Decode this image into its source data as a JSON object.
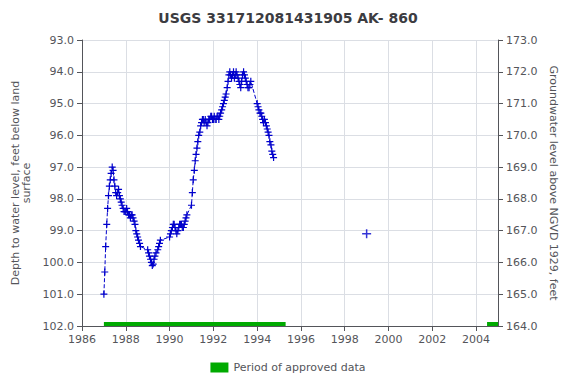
{
  "chart_data": {
    "type": "line",
    "title": "USGS 331712081431905 AK- 860",
    "ylabel": "Depth to water level, feet below land\nsurface",
    "y2label": "Groundwater level above NGVD 1929, feet",
    "xlim": [
      1986,
      2005
    ],
    "xticks": [
      1986,
      1988,
      1990,
      1992,
      1994,
      1996,
      1998,
      2000,
      2002,
      2004
    ],
    "ylim": [
      102.0,
      93.0
    ],
    "yticks": [
      {
        "value": 93.0,
        "label": "93.0"
      },
      {
        "value": 94.0,
        "label": "94.0"
      },
      {
        "value": 95.0,
        "label": "95.0"
      },
      {
        "value": 96.0,
        "label": "96.0"
      },
      {
        "value": 97.0,
        "label": "97.0"
      },
      {
        "value": 98.0,
        "label": "98.0"
      },
      {
        "value": 99.0,
        "label": "99.0"
      },
      {
        "value": 100.0,
        "label": "100.0"
      },
      {
        "value": 101.0,
        "label": "101.0"
      },
      {
        "value": 102.0,
        "label": "102.0"
      }
    ],
    "y2lim": [
      164.0,
      173.0
    ],
    "y2ticks": [
      {
        "value": 164.0,
        "label": "164.0"
      },
      {
        "value": 165.0,
        "label": "165.0"
      },
      {
        "value": 166.0,
        "label": "166.0"
      },
      {
        "value": 167.0,
        "label": "167.0"
      },
      {
        "value": 168.0,
        "label": "168.0"
      },
      {
        "value": 169.0,
        "label": "169.0"
      },
      {
        "value": 170.0,
        "label": "170.0"
      },
      {
        "value": 171.0,
        "label": "171.0"
      },
      {
        "value": 172.0,
        "label": "172.0"
      },
      {
        "value": 173.0,
        "label": "173.0"
      }
    ],
    "grid": true,
    "legend": "bottom",
    "series": [
      {
        "type": "line",
        "color": "#0000cc",
        "line_style": "dashed",
        "marker": "plus",
        "x": [
          1987.0,
          1987.04,
          1987.08,
          1987.13,
          1987.17,
          1987.21,
          1987.25,
          1987.29,
          1987.33,
          1987.38,
          1987.42,
          1987.46,
          1987.5,
          1987.54,
          1987.58,
          1987.63,
          1987.67,
          1987.71,
          1987.75,
          1987.79,
          1987.83,
          1987.88,
          1987.92,
          1987.96,
          1988.0,
          1988.04,
          1988.08,
          1988.13,
          1988.17,
          1988.21,
          1988.25,
          1988.29,
          1988.33,
          1988.38,
          1988.42,
          1988.46,
          1988.5,
          1988.54,
          1988.58,
          1988.63,
          1988.67,
          1989.0,
          1989.04,
          1989.08,
          1989.13,
          1989.17,
          1989.21,
          1989.25,
          1989.29,
          1989.33,
          1989.38,
          1989.46,
          1989.5,
          1989.54,
          1989.58,
          1990.0,
          1990.04,
          1990.08,
          1990.13,
          1990.17,
          1990.21,
          1990.25,
          1990.29,
          1990.33,
          1990.38,
          1990.42,
          1990.46,
          1990.5,
          1990.54,
          1990.58,
          1990.63,
          1990.67,
          1990.71,
          1990.75,
          1990.79,
          1991.0,
          1991.04,
          1991.08,
          1991.13,
          1991.17,
          1991.21,
          1991.25,
          1991.29,
          1991.33,
          1991.38,
          1991.42,
          1991.46,
          1991.5,
          1991.54,
          1991.58,
          1991.63,
          1991.67,
          1991.71,
          1991.75,
          1991.79,
          1991.83,
          1991.88,
          1991.92,
          1991.96,
          1992.0,
          1992.04,
          1992.08,
          1992.13,
          1992.17,
          1992.21,
          1992.25,
          1992.29,
          1992.33,
          1992.38,
          1992.42,
          1992.46,
          1992.5,
          1992.54,
          1992.58,
          1992.63,
          1992.67,
          1992.71,
          1992.75,
          1992.79,
          1992.83,
          1992.88,
          1992.92,
          1992.96,
          1993.0,
          1993.04,
          1993.08,
          1993.13,
          1993.17,
          1993.21,
          1993.25,
          1993.29,
          1993.33,
          1993.38,
          1993.42,
          1993.46,
          1993.5,
          1993.54,
          1993.58,
          1993.63,
          1993.67,
          1993.71,
          1994.0,
          1994.04,
          1994.08,
          1994.13,
          1994.17,
          1994.21,
          1994.25,
          1994.29,
          1994.33,
          1994.38,
          1994.42,
          1994.46,
          1994.5,
          1994.54,
          1994.58,
          1994.63,
          1994.67,
          1994.71,
          1994.75
        ],
        "values": [
          101.0,
          100.3,
          99.5,
          98.8,
          98.3,
          97.9,
          97.6,
          97.4,
          97.2,
          97.0,
          97.1,
          97.4,
          97.6,
          97.8,
          97.9,
          97.8,
          97.7,
          97.9,
          98.0,
          98.1,
          98.2,
          98.3,
          98.4,
          98.4,
          98.4,
          98.3,
          98.4,
          98.5,
          98.5,
          98.6,
          98.5,
          98.5,
          98.6,
          98.7,
          98.8,
          99.0,
          99.1,
          99.2,
          99.3,
          99.4,
          99.5,
          99.6,
          99.7,
          99.8,
          99.9,
          100.0,
          100.1,
          100.05,
          99.9,
          99.8,
          99.7,
          99.6,
          99.5,
          99.4,
          99.3,
          99.2,
          99.1,
          99.0,
          98.9,
          98.8,
          98.8,
          98.9,
          99.0,
          99.1,
          99.0,
          98.9,
          98.8,
          98.8,
          98.8,
          98.9,
          98.9,
          98.8,
          98.7,
          98.6,
          98.5,
          98.2,
          97.8,
          97.4,
          97.1,
          96.8,
          96.6,
          96.4,
          96.2,
          96.0,
          95.9,
          95.7,
          95.6,
          95.5,
          95.5,
          95.6,
          95.5,
          95.6,
          95.7,
          95.6,
          95.5,
          95.5,
          95.4,
          95.4,
          95.5,
          95.5,
          95.4,
          95.5,
          95.5,
          95.4,
          95.4,
          95.5,
          95.4,
          95.3,
          95.2,
          95.1,
          95.0,
          94.9,
          94.8,
          94.7,
          94.5,
          94.3,
          94.1,
          94.0,
          94.1,
          94.2,
          94.1,
          94.0,
          94.2,
          94.1,
          94.0,
          94.1,
          94.2,
          94.3,
          94.4,
          94.5,
          94.3,
          94.1,
          94.0,
          94.1,
          94.2,
          94.3,
          94.4,
          94.5,
          94.5,
          94.4,
          94.3,
          95.0,
          95.1,
          95.2,
          95.3,
          95.3,
          95.4,
          95.5,
          95.6,
          95.5,
          95.6,
          95.7,
          95.8,
          95.9,
          96.0,
          96.2,
          96.3,
          96.5,
          96.6,
          96.7
        ]
      },
      {
        "type": "scatter",
        "color": "#0000cc",
        "marker": "plus",
        "x": [
          1999.0
        ],
        "values": [
          99.1
        ]
      },
      {
        "type": "period",
        "name": "Period of approved data",
        "color": "#00aa00",
        "periods": [
          [
            1987.0,
            1995.3
          ],
          [
            2004.5,
            2005.0
          ]
        ]
      }
    ]
  }
}
